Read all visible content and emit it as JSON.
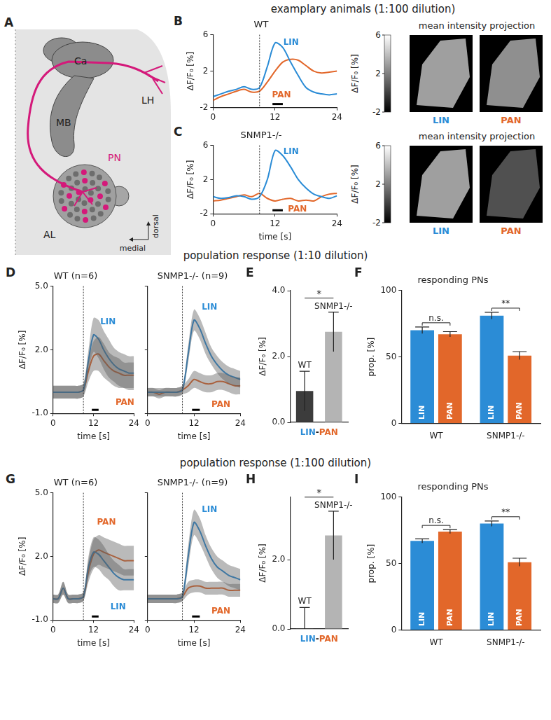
{
  "headers": [
    "examplary animals (1:100 dilution)",
    "population response (1:10 dilution)",
    "population response (1:100 dilution)"
  ],
  "diagram": {
    "panel": "A",
    "labels": [
      "Ca",
      "LH",
      "MB",
      "PN",
      "AL"
    ],
    "directions": [
      "medial",
      "dorsal"
    ]
  },
  "projections": [
    {
      "title": "mean intensity projection",
      "colorbar": {
        "label": "ΔF/F₀ [%]",
        "range": [
          -2,
          6
        ],
        "ticks": [
          -2,
          2,
          6
        ]
      },
      "images": [
        {
          "label": "LIN",
          "mean": 3.0
        },
        {
          "label": "PAN",
          "mean": 2.5
        }
      ]
    },
    {
      "title": "mean intensity projection",
      "colorbar": {
        "label": "ΔF/F₀ [%]",
        "range": [
          -2,
          6
        ],
        "ticks": [
          -2,
          2,
          6
        ]
      },
      "images": [
        {
          "label": "LIN",
          "mean": 3.0
        },
        {
          "label": "PAN",
          "mean": 0.5
        }
      ]
    }
  ],
  "chart_data": [
    {
      "panel": "B",
      "type": "line",
      "title": "WT",
      "ylabel": "ΔF/F₀ [%]",
      "grid": false,
      "x": [
        0,
        1.5,
        3,
        4.5,
        6,
        7.5,
        9,
        10.5,
        12,
        13.5,
        15,
        16.5,
        18,
        19.5,
        21,
        22.5,
        24
      ],
      "xlim": [
        0,
        24
      ],
      "xticks": [
        0,
        12,
        24
      ],
      "ylim": [
        -2,
        6
      ],
      "yticks": [
        -2,
        2,
        6
      ],
      "onset": 9,
      "stimulus": [
        11.5,
        13.5
      ],
      "series": [
        {
          "name": "LIN",
          "color": "#2b8cd6",
          "values": [
            -0.8,
            -0.5,
            -0.2,
            0,
            0.3,
            0,
            0.2,
            2.5,
            5.1,
            4.6,
            3.0,
            1.5,
            0.2,
            -0.3,
            -0.5,
            -0.6,
            -0.5
          ],
          "label_at": [
            13.6,
            4.9
          ]
        },
        {
          "name": "PAN",
          "color": "#e2672a",
          "values": [
            -1.2,
            -0.8,
            -0.5,
            -0.2,
            0,
            -0.3,
            -0.2,
            0.8,
            2.0,
            3.0,
            3.3,
            3.2,
            2.6,
            2.0,
            1.8,
            1.9,
            2.0
          ],
          "label_at": [
            11.4,
            -0.9
          ]
        }
      ]
    },
    {
      "panel": "C",
      "type": "line",
      "title": "SNMP1-/-",
      "xlabel": "time [s]",
      "ylabel": "ΔF/F₀ [%]",
      "grid": false,
      "x": [
        0,
        1.5,
        3,
        4.5,
        6,
        7.5,
        9,
        10.5,
        12,
        13.5,
        15,
        16.5,
        18,
        19.5,
        21,
        22.5,
        24
      ],
      "xlim": [
        0,
        24
      ],
      "xticks": [
        0,
        12,
        24
      ],
      "ylim": [
        -2,
        6
      ],
      "yticks": [
        -2,
        2,
        6
      ],
      "onset": 9,
      "stimulus": [
        11.5,
        13.5
      ],
      "series": [
        {
          "name": "LIN",
          "color": "#2b8cd6",
          "values": [
            0,
            -0.2,
            -0.1,
            0.1,
            0,
            -0.3,
            0,
            2.0,
            5.4,
            4.8,
            3.5,
            2.0,
            1.0,
            0.3,
            0,
            -0.2,
            0.1
          ],
          "label_at": [
            13.6,
            5.0
          ]
        },
        {
          "name": "PAN",
          "color": "#e2672a",
          "values": [
            -0.5,
            -0.4,
            -0.2,
            0,
            0.2,
            0,
            0.4,
            -0.2,
            -0.5,
            -0.3,
            -0.2,
            -0.5,
            -0.4,
            -0.5,
            0,
            0.3,
            0.4
          ],
          "label_at": [
            14.5,
            -1.7
          ]
        }
      ]
    },
    {
      "panel": "D",
      "type": "line",
      "title": "WT (n=6)",
      "xlabel": "time [s]",
      "ylabel": "ΔF/F₀ [%]",
      "grid": false,
      "x": [
        0,
        1.5,
        3,
        4.5,
        6,
        7.5,
        9,
        10.5,
        12,
        13.5,
        15,
        16.5,
        18,
        19.5,
        21,
        22.5,
        24
      ],
      "xlim": [
        0,
        24
      ],
      "xticks": [
        0,
        12,
        24
      ],
      "ylim": [
        -1,
        5
      ],
      "yticks": [
        {
          "value": -1,
          "label": "-1.0"
        },
        {
          "value": 2,
          "label": "2.0"
        },
        {
          "value": 5,
          "label": "5.0"
        }
      ],
      "onset": 9,
      "stimulus": [
        11.5,
        13.5
      ],
      "series": [
        {
          "name": "LIN",
          "color": "#2b8cd6",
          "values": [
            0,
            0,
            0,
            0,
            0,
            0,
            0.1,
            1.5,
            2.7,
            2.5,
            2.0,
            1.6,
            1.3,
            1.1,
            1.0,
            0.9,
            0.9
          ],
          "errors": [
            0.3,
            0.3,
            0.3,
            0.3,
            0.3,
            0.3,
            0.3,
            0.5,
            0.8,
            0.9,
            0.9,
            0.9,
            0.8,
            0.8,
            0.8,
            0.8,
            0.8
          ],
          "label_at": [
            14,
            3.2
          ]
        },
        {
          "name": "PAN",
          "color": "#e2672a",
          "values": [
            0,
            0,
            0,
            0,
            0,
            0,
            0.1,
            1.0,
            1.7,
            1.8,
            1.5,
            1.2,
            1.0,
            0.9,
            0.8,
            0.8,
            0.8
          ],
          "errors": [
            0.3,
            0.3,
            0.3,
            0.3,
            0.3,
            0.3,
            0.3,
            0.5,
            0.7,
            0.8,
            0.8,
            0.7,
            0.7,
            0.7,
            0.6,
            0.6,
            0.6
          ],
          "label_at": [
            18.5,
            -0.6
          ]
        }
      ]
    },
    {
      "panel": "D",
      "type": "line",
      "title": "SNMP1-/- (n=9)",
      "xlabel": "time [s]",
      "grid": false,
      "tick_labels": "x",
      "x": [
        0,
        1.5,
        3,
        4.5,
        6,
        7.5,
        9,
        10.5,
        12,
        13.5,
        15,
        16.5,
        18,
        19.5,
        21,
        22.5,
        24
      ],
      "xlim": [
        0,
        24
      ],
      "xticks": [
        0,
        12,
        24
      ],
      "ylim": [
        -1,
        5
      ],
      "yticks": [
        {
          "value": -1,
          "label": "-1.0"
        },
        {
          "value": 2,
          "label": "2.0"
        },
        {
          "value": 5,
          "label": "5.0"
        }
      ],
      "onset": 9,
      "stimulus": [
        11.5,
        13.5
      ],
      "series": [
        {
          "name": "LIN",
          "color": "#2b8cd6",
          "values": [
            0,
            0,
            0,
            0,
            0,
            0,
            0.1,
            1.8,
            3.4,
            3.0,
            2.3,
            1.7,
            1.3,
            1.0,
            0.8,
            0.7,
            0.6
          ],
          "errors": [
            0.2,
            0.2,
            0.2,
            0.2,
            0.2,
            0.2,
            0.2,
            0.4,
            0.5,
            0.5,
            0.5,
            0.4,
            0.4,
            0.4,
            0.4,
            0.4,
            0.4
          ],
          "label_at": [
            14,
            3.9
          ]
        },
        {
          "name": "PAN",
          "color": "#e2672a",
          "values": [
            0,
            0,
            -0.1,
            0,
            0,
            0,
            0.1,
            0.3,
            0.6,
            0.5,
            0.4,
            0.4,
            0.5,
            0.5,
            0.4,
            0.3,
            0.3
          ],
          "errors": [
            0.2,
            0.2,
            0.2,
            0.2,
            0.2,
            0.2,
            0.2,
            0.3,
            0.4,
            0.4,
            0.4,
            0.4,
            0.4,
            0.4,
            0.4,
            0.4,
            0.4
          ],
          "label_at": [
            16.5,
            -0.7
          ]
        }
      ]
    },
    {
      "panel": "E",
      "type": "bar",
      "ylabel": "ΔF/F₀ [%]",
      "xlabel": "LIN-PAN",
      "grid": false,
      "tick_labels": "y",
      "categories": [
        "WT",
        "SNMP1-/-"
      ],
      "values": [
        0.95,
        2.75
      ],
      "errors": [
        0.6,
        0.6
      ],
      "colors": [
        "#3c3c3c",
        "#b4b4b4"
      ],
      "ylim": [
        0,
        4
      ],
      "yticks": [
        {
          "value": 0,
          "label": "0.0"
        },
        {
          "value": 2,
          "label": "2.0"
        },
        {
          "value": 4,
          "label": "4.0"
        }
      ],
      "significance": "*"
    },
    {
      "panel": "F",
      "type": "bar",
      "title": "responding PNs",
      "ylabel": "prop. [%]",
      "grid": false,
      "categories": [
        "WT",
        "SNMP1-/-"
      ],
      "ylim": [
        0,
        100
      ],
      "yticks": [
        0,
        50,
        100
      ],
      "series": [
        {
          "name": "LIN",
          "color": "#2b8cd6",
          "values": [
            70,
            81
          ],
          "errors": [
            2.5,
            2.5
          ]
        },
        {
          "name": "PAN",
          "color": "#e2672a",
          "values": [
            67,
            51
          ],
          "errors": [
            2,
            3
          ]
        }
      ],
      "significance": [
        "n.s.",
        "**"
      ]
    },
    {
      "panel": "G",
      "type": "line",
      "title": "WT (n=6)",
      "xlabel": "time [s]",
      "ylabel": "ΔF/F₀ [%]",
      "grid": false,
      "x": [
        0,
        1.5,
        3,
        4.5,
        6,
        7.5,
        9,
        10.5,
        12,
        13.5,
        15,
        16.5,
        18,
        19.5,
        21,
        22.5,
        24
      ],
      "xlim": [
        0,
        24
      ],
      "xticks": [
        0,
        12,
        24
      ],
      "ylim": [
        -1,
        5
      ],
      "yticks": [
        {
          "value": -1,
          "label": "-1.0"
        },
        {
          "value": 2,
          "label": "2.0"
        },
        {
          "value": 5,
          "label": "5.0"
        }
      ],
      "onset": 9,
      "stimulus": [
        11.5,
        13.5
      ],
      "series": [
        {
          "name": "LIN",
          "color": "#2b8cd6",
          "values": [
            0,
            0,
            0.5,
            0,
            0,
            0,
            0.1,
            1.5,
            2.2,
            2.1,
            1.8,
            1.5,
            1.2,
            1.0,
            0.9,
            0.9,
            0.9
          ],
          "errors": [
            0.2,
            0.2,
            0.3,
            0.2,
            0.2,
            0.2,
            0.2,
            0.5,
            0.7,
            0.7,
            0.7,
            0.6,
            0.6,
            0.6,
            0.5,
            0.5,
            0.5
          ],
          "label_at": [
            17,
            -0.5
          ]
        },
        {
          "name": "PAN",
          "color": "#e2672a",
          "values": [
            0,
            0,
            0.5,
            0,
            0,
            0,
            0.1,
            1.3,
            2.1,
            2.3,
            2.2,
            2.1,
            2.0,
            1.9,
            1.8,
            1.8,
            1.8
          ],
          "errors": [
            0.2,
            0.2,
            0.3,
            0.2,
            0.2,
            0.2,
            0.2,
            0.5,
            0.7,
            0.7,
            0.7,
            0.7,
            0.7,
            0.7,
            0.7,
            0.7,
            0.7
          ],
          "label_at": [
            13,
            3.5
          ]
        }
      ]
    },
    {
      "panel": "G",
      "type": "line",
      "title": "SNMP1-/- (n=9)",
      "xlabel": "time [s]",
      "grid": false,
      "tick_labels": "x",
      "x": [
        0,
        1.5,
        3,
        4.5,
        6,
        7.5,
        9,
        10.5,
        12,
        13.5,
        15,
        16.5,
        18,
        19.5,
        21,
        22.5,
        24
      ],
      "xlim": [
        0,
        24
      ],
      "xticks": [
        0,
        12,
        24
      ],
      "ylim": [
        -1,
        5
      ],
      "yticks": [
        {
          "value": -1,
          "label": "-1.0"
        },
        {
          "value": 2,
          "label": "2.0"
        },
        {
          "value": 5,
          "label": "5.0"
        }
      ],
      "onset": 9,
      "stimulus": [
        11.5,
        13.5
      ],
      "series": [
        {
          "name": "LIN",
          "color": "#2b8cd6",
          "values": [
            0,
            0,
            0,
            0,
            0,
            0,
            0.1,
            2.0,
            3.6,
            3.2,
            2.5,
            1.9,
            1.5,
            1.3,
            1.1,
            1.0,
            0.9
          ],
          "errors": [
            0.2,
            0.2,
            0.2,
            0.2,
            0.2,
            0.2,
            0.2,
            0.5,
            0.6,
            0.6,
            0.5,
            0.5,
            0.5,
            0.5,
            0.5,
            0.5,
            0.5
          ],
          "label_at": [
            14,
            4.1
          ]
        },
        {
          "name": "PAN",
          "color": "#e2672a",
          "values": [
            0,
            0,
            0,
            0,
            0,
            0,
            0.1,
            0.5,
            0.6,
            0.6,
            0.5,
            0.5,
            0.5,
            0.5,
            0.4,
            0.4,
            0.4
          ],
          "errors": [
            0.2,
            0.2,
            0.2,
            0.2,
            0.2,
            0.2,
            0.2,
            0.3,
            0.3,
            0.3,
            0.3,
            0.3,
            0.3,
            0.3,
            0.3,
            0.3,
            0.3
          ],
          "label_at": [
            16.5,
            -0.7
          ]
        }
      ]
    },
    {
      "panel": "H",
      "type": "bar",
      "ylabel": "ΔF/F₀ [%]",
      "xlabel": "LIN-PAN",
      "grid": false,
      "tick_labels": "y",
      "categories": [
        "WT",
        "SNMP1-/-"
      ],
      "values": [
        0.02,
        2.7
      ],
      "errors": [
        0.6,
        0.7
      ],
      "colors": [
        "#3c3c3c",
        "#b4b4b4"
      ],
      "ylim": [
        0,
        3.8
      ],
      "yticks": [
        {
          "value": 0,
          "label": "0.0"
        },
        {
          "value": 2,
          "label": "2.0"
        }
      ],
      "significance": "*"
    },
    {
      "panel": "I",
      "type": "bar",
      "title": "responding PNs",
      "ylabel": "prop. [%]",
      "grid": false,
      "categories": [
        "WT",
        "SNMP1-/-"
      ],
      "ylim": [
        0,
        100
      ],
      "yticks": [
        0,
        50,
        100
      ],
      "series": [
        {
          "name": "LIN",
          "color": "#2b8cd6",
          "values": [
            67,
            80
          ],
          "errors": [
            1.5,
            2
          ]
        },
        {
          "name": "PAN",
          "color": "#e2672a",
          "values": [
            74,
            51
          ],
          "errors": [
            1.5,
            3
          ]
        }
      ],
      "significance": [
        "n.s.",
        "**"
      ]
    }
  ]
}
